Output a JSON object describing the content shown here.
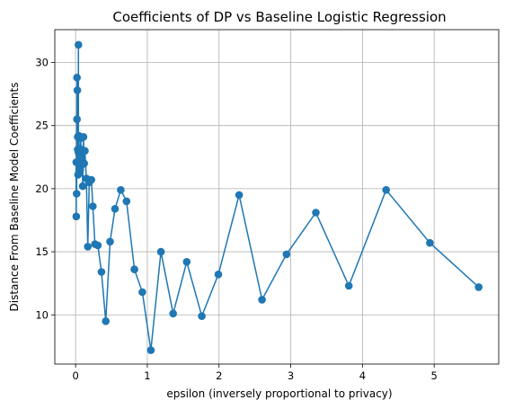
{
  "chart_data": {
    "type": "line",
    "title": "Coefficients of DP vs Baseline Logistic Regression",
    "xlabel": "epsilon (inversely proportional to privacy)",
    "ylabel": "Distance From Baseline Model Coefficients",
    "xlim": [
      -0.29,
      5.9
    ],
    "ylim": [
      6.1,
      32.6
    ],
    "xticks": [
      0,
      1,
      2,
      3,
      4,
      5
    ],
    "yticks": [
      10,
      15,
      20,
      25,
      30
    ],
    "grid": true,
    "line_color": "#1f77b4",
    "marker": "circle",
    "series": [
      {
        "x": [
          0.01,
          0.01,
          0.015,
          0.02,
          0.02,
          0.025,
          0.03,
          0.03,
          0.035,
          0.04,
          0.04,
          0.045,
          0.05,
          0.05,
          0.055,
          0.06,
          0.065,
          0.07,
          0.08,
          0.09,
          0.1,
          0.11,
          0.12,
          0.13,
          0.15,
          0.17,
          0.19,
          0.22,
          0.24,
          0.27,
          0.31,
          0.36,
          0.42,
          0.48,
          0.55,
          0.63,
          0.71,
          0.82,
          0.93,
          1.05,
          1.19,
          1.36,
          1.55,
          1.76,
          1.99,
          2.28,
          2.6,
          2.94,
          3.35,
          3.81,
          4.33,
          4.94,
          5.62
        ],
        "y": [
          17.8,
          22.1,
          19.6,
          28.8,
          25.5,
          27.8,
          23.1,
          24.1,
          21.1,
          31.4,
          22.9,
          24.2,
          23.1,
          21.4,
          22.6,
          22.0,
          21.5,
          24.0,
          23.1,
          21.9,
          20.2,
          24.1,
          22.0,
          23.0,
          20.8,
          15.4,
          20.5,
          20.7,
          18.6,
          15.6,
          15.5,
          13.4,
          9.5,
          15.8,
          18.4,
          19.9,
          19.0,
          13.6,
          11.8,
          7.2,
          15.0,
          10.1,
          14.2,
          9.9,
          13.2,
          19.5,
          11.2,
          14.8,
          18.1,
          12.3,
          19.9,
          15.7,
          12.2
        ]
      }
    ]
  }
}
